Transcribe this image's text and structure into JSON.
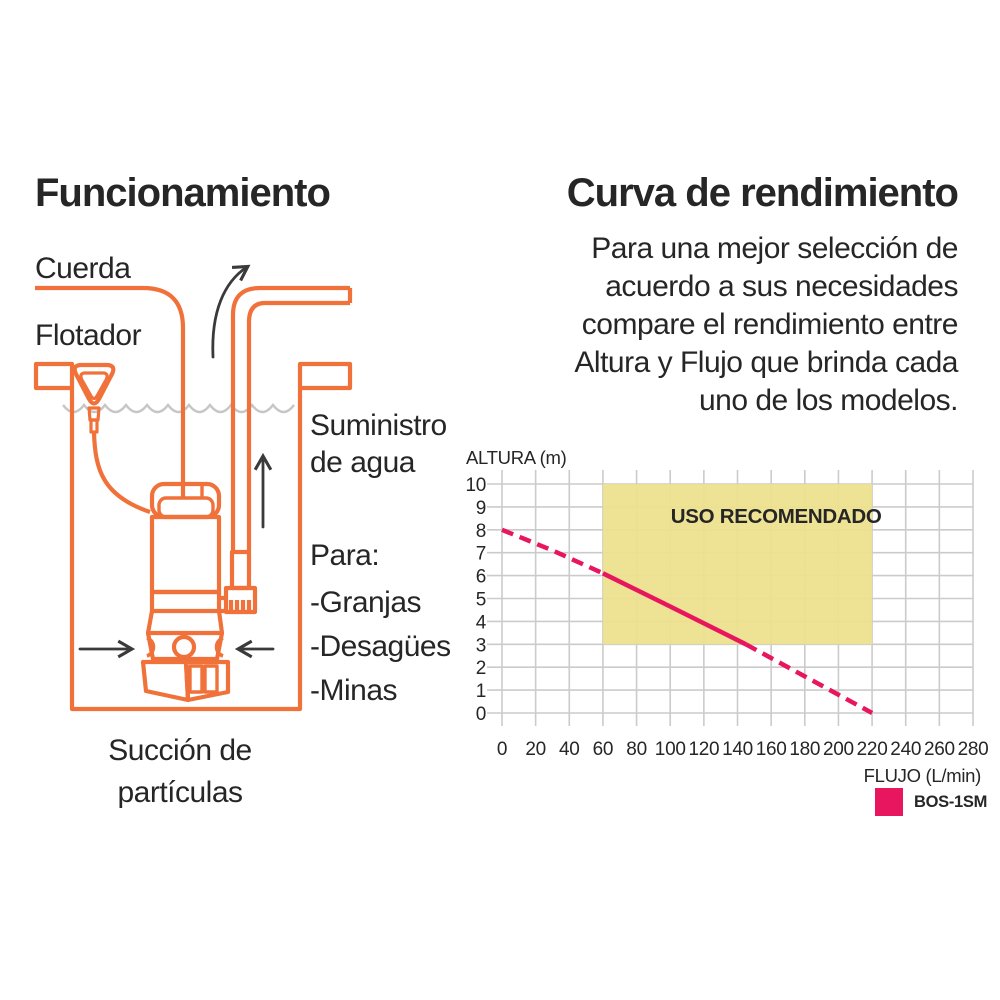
{
  "left_panel": {
    "title": "Funcionamiento",
    "labels": {
      "rope": "Cuerda",
      "float": "Flotador",
      "water_supply_line1": "Suministro",
      "water_supply_line2": "de agua",
      "uses_heading": "Para:",
      "uses": [
        "-Granjas",
        "-Desagües",
        "-Minas"
      ],
      "suction_line1": "Succión de",
      "suction_line2": "partículas"
    },
    "colors": {
      "outline_orange": "#F0713A",
      "wave_gray": "#C6C6C6",
      "arrow_black": "#3A3A3A"
    }
  },
  "right_panel": {
    "title": "Curva de rendimiento",
    "description_lines": [
      "Para una mejor selección de",
      "acuerdo a sus necesidades",
      "compare el rendimiento entre",
      "Altura y Flujo que brinda cada",
      "uno de los modelos."
    ]
  },
  "chart_data": {
    "type": "line",
    "title": "",
    "xlabel": "FLUJO (L/min)",
    "ylabel": "ALTURA (m)",
    "xlim": [
      0,
      280
    ],
    "ylim": [
      0,
      10
    ],
    "xticks": [
      0,
      20,
      40,
      60,
      80,
      100,
      120,
      140,
      160,
      180,
      200,
      220,
      240,
      260,
      280
    ],
    "yticks": [
      0,
      1,
      2,
      3,
      4,
      5,
      6,
      7,
      8,
      9,
      10
    ],
    "grid": true,
    "grid_color": "#CBCBCB",
    "recommended_zone": {
      "label": "USO RECOMENDADO",
      "x": [
        60,
        220
      ],
      "y": [
        3,
        10
      ],
      "color": "#EDE18C",
      "label_color": "#1D1D1B"
    },
    "series": [
      {
        "name": "BOS-1SM",
        "color": "#E8155F",
        "segments": [
          {
            "style": "dashed",
            "points": [
              [
                0,
                8
              ],
              [
                30,
                7.1
              ],
              [
                60,
                6.1
              ]
            ]
          },
          {
            "style": "solid",
            "points": [
              [
                60,
                6.1
              ],
              [
                100,
                4.65
              ],
              [
                145,
                3
              ]
            ]
          },
          {
            "style": "dashed",
            "points": [
              [
                145,
                3
              ],
              [
                180,
                1.6
              ],
              [
                220,
                0
              ]
            ]
          }
        ]
      }
    ],
    "legend": [
      {
        "label": "BOS-1SM",
        "color": "#E8155F"
      }
    ],
    "legend_position": "bottom-right"
  }
}
